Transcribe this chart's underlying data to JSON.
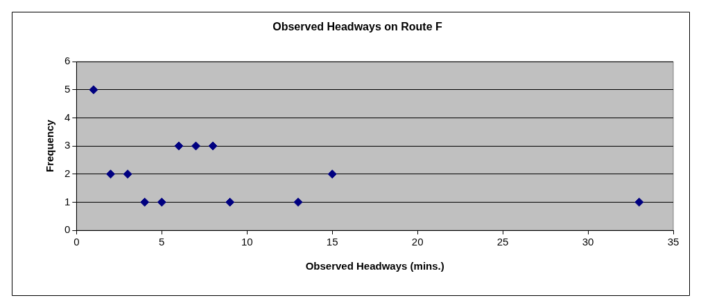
{
  "chart_data": {
    "type": "scatter",
    "title": "Observed Headways on Route F",
    "xlabel": "Observed Headways (mins.)",
    "ylabel": "Frequency",
    "x": [
      1,
      2,
      3,
      4,
      5,
      6,
      7,
      8,
      9,
      13,
      15,
      33
    ],
    "series": [
      {
        "color": "#000080",
        "values": [
          5,
          2,
          2,
          1,
          1,
          3,
          3,
          3,
          1,
          1,
          2,
          1
        ]
      }
    ],
    "xlim": [
      0,
      35
    ],
    "xticks": [
      0,
      5,
      10,
      15,
      20,
      25,
      30,
      35
    ],
    "ylim": [
      0,
      6
    ],
    "yticks": [
      0,
      1,
      2,
      3,
      4,
      5,
      6
    ],
    "grid": "y",
    "legend": false,
    "marker": "diamond"
  }
}
